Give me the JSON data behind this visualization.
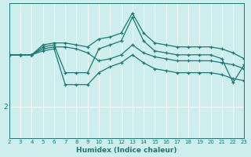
{
  "xlabel": "Humidex (Indice chaleur)",
  "bg_color": "#cdeeed",
  "line_color": "#1a7a6e",
  "grid_color": "#ffffff",
  "xmin": 2,
  "xmax": 23,
  "ymin": 1.2,
  "ymax": 4.6,
  "ytick_val": 2,
  "ytick_label": "2",
  "lines": [
    {
      "x": [
        2,
        3,
        4,
        5,
        6,
        7,
        8,
        9,
        10,
        11,
        12,
        13,
        14,
        15,
        16,
        17,
        18,
        19,
        20,
        21,
        22,
        23
      ],
      "y": [
        3.3,
        3.3,
        3.3,
        3.55,
        3.6,
        3.6,
        3.55,
        3.5,
        3.7,
        3.75,
        3.85,
        4.35,
        3.85,
        3.6,
        3.55,
        3.5,
        3.5,
        3.5,
        3.5,
        3.45,
        3.35,
        3.2
      ]
    },
    {
      "x": [
        2,
        3,
        4,
        5,
        6,
        7,
        8,
        9,
        10,
        11,
        12,
        13,
        14,
        15,
        16,
        17,
        18,
        19,
        20,
        21,
        22,
        23
      ],
      "y": [
        3.3,
        3.3,
        3.3,
        3.5,
        3.55,
        2.85,
        2.85,
        2.85,
        3.45,
        3.55,
        3.65,
        4.25,
        3.65,
        3.4,
        3.35,
        3.3,
        3.3,
        3.3,
        3.3,
        3.2,
        2.6,
        3.05
      ]
    },
    {
      "x": [
        2,
        3,
        4,
        5,
        6,
        7,
        8,
        9,
        10,
        11,
        12,
        13,
        14,
        15,
        16,
        17,
        18,
        19,
        20,
        21,
        22,
        23
      ],
      "y": [
        3.3,
        3.3,
        3.3,
        3.45,
        3.5,
        3.5,
        3.45,
        3.35,
        3.15,
        3.2,
        3.3,
        3.55,
        3.35,
        3.25,
        3.2,
        3.15,
        3.15,
        3.15,
        3.15,
        3.1,
        3.05,
        2.95
      ]
    },
    {
      "x": [
        2,
        3,
        4,
        5,
        6,
        7,
        8,
        9,
        10,
        11,
        12,
        13,
        14,
        15,
        16,
        17,
        18,
        19,
        20,
        21,
        22,
        23
      ],
      "y": [
        3.3,
        3.3,
        3.3,
        3.4,
        3.45,
        2.55,
        2.55,
        2.55,
        2.85,
        3.0,
        3.1,
        3.3,
        3.1,
        2.95,
        2.9,
        2.85,
        2.85,
        2.85,
        2.85,
        2.8,
        2.7,
        2.65
      ]
    }
  ]
}
